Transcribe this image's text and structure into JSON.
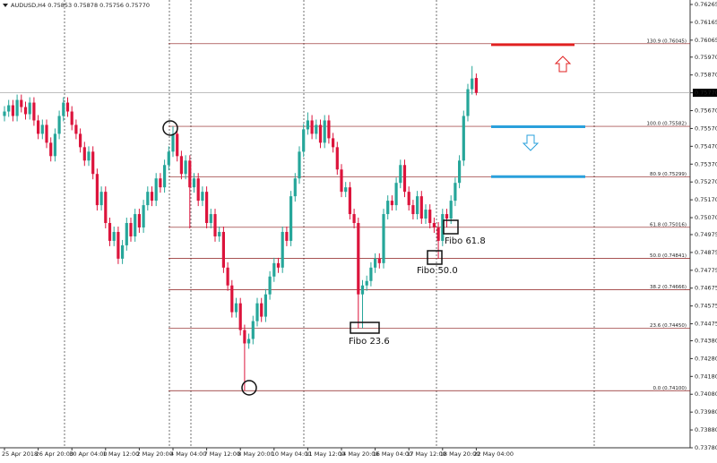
{
  "chart_data": {
    "type": "candlestick",
    "title": "AUDUSD,H4 0.75853 0.75878 0.75756 0.75770",
    "up_color": "#26a69a",
    "down_color": "#dc143c",
    "ylim": [
      0.7378,
      0.76265
    ],
    "yticks": [
      0.76265,
      0.76165,
      0.76065,
      {
        "value": 0.7597,
        "label": "0.75970"
      },
      {
        "value": 0.7587,
        "label": "0.75870"
      },
      {
        "value": 0.7577,
        "label": "0.75770"
      },
      {
        "value": 0.7567,
        "label": "0.75670"
      },
      {
        "value": 0.7557,
        "label": "0.75570"
      },
      {
        "value": 0.7547,
        "label": "0.75470"
      },
      {
        "value": 0.7537,
        "label": "0.75370"
      },
      {
        "value": 0.7527,
        "label": "0.75270"
      },
      {
        "value": 0.7517,
        "label": "0.75170"
      },
      {
        "value": 0.7507,
        "label": "0.75070"
      },
      0.74975,
      0.74875,
      0.74775,
      0.74675,
      0.74575,
      0.74475,
      {
        "value": 0.7438,
        "label": "0.74380"
      },
      {
        "value": 0.7428,
        "label": "0.74280"
      },
      {
        "value": 0.7418,
        "label": "0.74180"
      },
      {
        "value": 0.7408,
        "label": "0.74080"
      },
      {
        "value": 0.7398,
        "label": "0.73980"
      },
      {
        "value": 0.7388,
        "label": "0.73880"
      },
      {
        "value": 0.7378,
        "label": "0.73780"
      }
    ],
    "categories": [
      "25 Apr 2018",
      null,
      null,
      null,
      null,
      null,
      null,
      null,
      "26 Apr 20:00",
      null,
      null,
      null,
      null,
      null,
      null,
      null,
      "30 Apr 04:00",
      null,
      null,
      null,
      null,
      null,
      null,
      null,
      "1 May 12:00",
      null,
      null,
      null,
      null,
      null,
      null,
      null,
      "2 May 20:00",
      null,
      null,
      null,
      null,
      null,
      null,
      null,
      "4 May 04:00",
      null,
      null,
      null,
      null,
      null,
      null,
      null,
      "7 May 12:00",
      null,
      null,
      null,
      null,
      null,
      null,
      null,
      "8 May 20:00",
      null,
      null,
      null,
      null,
      null,
      null,
      null,
      "10 May 04:00",
      null,
      null,
      null,
      null,
      null,
      null,
      null,
      "11 May 12:00",
      null,
      null,
      null,
      null,
      null,
      null,
      null,
      "14 May 20:00",
      null,
      null,
      null,
      null,
      null,
      null,
      null,
      "16 May 04:00",
      null,
      null,
      null,
      null,
      null,
      null,
      null,
      "17 May 12:00",
      null,
      null,
      null,
      null,
      null,
      null,
      null,
      "18 May 20:00",
      null,
      null,
      null,
      null,
      null,
      null,
      null,
      "22 May 04:00"
    ],
    "open": [
      0.7564,
      0.75665,
      0.757,
      0.7564,
      0.7573,
      0.7569,
      0.7565,
      0.75715,
      0.75615,
      0.7554,
      0.7559,
      0.7549,
      0.75415,
      0.7554,
      0.7564,
      0.75715,
      0.75665,
      0.7559,
      0.7554,
      0.75465,
      0.7539,
      0.7544,
      0.75315,
      0.7514,
      0.75215,
      0.7504,
      0.7494,
      0.7499,
      0.7484,
      0.74915,
      0.7504,
      0.74965,
      0.7509,
      0.75015,
      0.7514,
      0.75215,
      0.75165,
      0.7529,
      0.7524,
      0.75365,
      0.7544,
      0.7554,
      0.75415,
      0.75315,
      0.7539,
      0.7524,
      0.7529,
      0.75165,
      0.75215,
      0.7504,
      0.7509,
      0.74965,
      0.7499,
      0.7479,
      0.7469,
      0.7454,
      0.7459,
      0.7444,
      0.74365,
      0.7439,
      0.7449,
      0.7459,
      0.74515,
      0.7464,
      0.7474,
      0.74815,
      0.7479,
      0.7499,
      0.7494,
      0.7519,
      0.7529,
      0.7544,
      0.75565,
      0.75615,
      0.7554,
      0.7559,
      0.7549,
      0.75615,
      0.75515,
      0.75465,
      0.7534,
      0.75215,
      0.7524,
      0.7509,
      0.7504,
      0.7464,
      0.7469,
      0.74715,
      0.7479,
      0.7484,
      0.74815,
      0.7509,
      0.75165,
      0.7514,
      0.75265,
      0.75365,
      0.75215,
      0.7514,
      0.7509,
      0.7519,
      0.75065,
      0.75115,
      0.7504,
      0.75015,
      0.7494,
      0.7509,
      0.75065,
      0.75165,
      0.75265,
      0.7539,
      0.7564,
      0.7579,
      0.75853
    ],
    "high": [
      0.75695,
      0.7573,
      0.7573,
      0.7576,
      0.7576,
      0.7572,
      0.75745,
      0.75745,
      0.75645,
      0.7562,
      0.7562,
      0.7552,
      0.7557,
      0.7567,
      0.75745,
      0.75745,
      0.75695,
      0.7562,
      0.7557,
      0.75495,
      0.7547,
      0.7547,
      0.75345,
      0.75245,
      0.75245,
      0.7507,
      0.7502,
      0.7502,
      0.74945,
      0.7507,
      0.7507,
      0.7512,
      0.7512,
      0.7517,
      0.75245,
      0.75245,
      0.7532,
      0.7532,
      0.75395,
      0.7547,
      0.75582,
      0.7557,
      0.75445,
      0.7542,
      0.7542,
      0.7532,
      0.7532,
      0.75245,
      0.75245,
      0.7512,
      0.7512,
      0.7502,
      0.7502,
      0.7482,
      0.7472,
      0.7462,
      0.7462,
      0.7447,
      0.7442,
      0.7452,
      0.7462,
      0.7462,
      0.7467,
      0.7477,
      0.74845,
      0.74845,
      0.7502,
      0.7502,
      0.7522,
      0.7532,
      0.7547,
      0.75595,
      0.7566,
      0.75645,
      0.7562,
      0.7562,
      0.75645,
      0.75645,
      0.75545,
      0.75495,
      0.7537,
      0.7527,
      0.7527,
      0.7512,
      0.7507,
      0.7472,
      0.74745,
      0.7482,
      0.7487,
      0.7487,
      0.7512,
      0.75195,
      0.75195,
      0.75295,
      0.75395,
      0.75395,
      0.75245,
      0.7517,
      0.7522,
      0.7522,
      0.75145,
      0.75145,
      0.7507,
      0.75045,
      0.7512,
      0.7512,
      0.75195,
      0.75295,
      0.7542,
      0.7567,
      0.7582,
      0.7592,
      0.75878
    ],
    "low": [
      0.7561,
      0.75635,
      0.7561,
      0.7561,
      0.7566,
      0.7562,
      0.7562,
      0.75585,
      0.7551,
      0.7551,
      0.7546,
      0.75385,
      0.75385,
      0.7551,
      0.7561,
      0.75635,
      0.7556,
      0.7551,
      0.75435,
      0.7536,
      0.7536,
      0.75285,
      0.7511,
      0.7511,
      0.7501,
      0.7491,
      0.7491,
      0.7481,
      0.7481,
      0.74885,
      0.74935,
      0.74935,
      0.74985,
      0.74985,
      0.7511,
      0.75135,
      0.75135,
      0.7521,
      0.7521,
      0.75335,
      0.7541,
      0.75385,
      0.75285,
      0.75285,
      0.7501,
      0.7521,
      0.75135,
      0.75135,
      0.7501,
      0.7501,
      0.74935,
      0.74935,
      0.7476,
      0.7466,
      0.7451,
      0.7451,
      0.7441,
      0.741,
      0.74335,
      0.7436,
      0.7446,
      0.74485,
      0.74485,
      0.7461,
      0.7471,
      0.7476,
      0.7476,
      0.7491,
      0.7491,
      0.7516,
      0.7526,
      0.7541,
      0.75535,
      0.7551,
      0.7551,
      0.7546,
      0.7546,
      0.75485,
      0.75435,
      0.7531,
      0.75185,
      0.75185,
      0.7506,
      0.7501,
      0.7445,
      0.7445,
      0.7466,
      0.74685,
      0.7476,
      0.74785,
      0.74785,
      0.7506,
      0.7511,
      0.7511,
      0.75235,
      0.75185,
      0.7511,
      0.7506,
      0.7506,
      0.75035,
      0.75035,
      0.7501,
      0.74985,
      0.74841,
      0.7491,
      0.75016,
      0.75035,
      0.75135,
      0.75235,
      0.7536,
      0.7561,
      0.7576,
      0.75756
    ],
    "close": [
      0.75665,
      0.757,
      0.7564,
      0.7573,
      0.7569,
      0.7565,
      0.75715,
      0.75615,
      0.7554,
      0.7559,
      0.7549,
      0.75415,
      0.7554,
      0.7564,
      0.75715,
      0.75665,
      0.7559,
      0.7554,
      0.75465,
      0.7539,
      0.7544,
      0.75315,
      0.7514,
      0.75215,
      0.7504,
      0.7494,
      0.7499,
      0.7484,
      0.74915,
      0.7504,
      0.74965,
      0.7509,
      0.75015,
      0.7514,
      0.75215,
      0.75165,
      0.7529,
      0.7524,
      0.75365,
      0.7544,
      0.7554,
      0.75415,
      0.75315,
      0.7539,
      0.7524,
      0.7529,
      0.75165,
      0.75215,
      0.7504,
      0.7509,
      0.74965,
      0.7499,
      0.7479,
      0.7469,
      0.7454,
      0.7459,
      0.7444,
      0.74365,
      0.7439,
      0.7449,
      0.7459,
      0.74515,
      0.7464,
      0.7474,
      0.74815,
      0.7479,
      0.7499,
      0.7494,
      0.7519,
      0.7529,
      0.7544,
      0.75565,
      0.75615,
      0.7554,
      0.7559,
      0.7549,
      0.75615,
      0.75515,
      0.75465,
      0.7534,
      0.75215,
      0.7524,
      0.7509,
      0.7504,
      0.7464,
      0.7469,
      0.74715,
      0.7479,
      0.7484,
      0.74815,
      0.7509,
      0.75165,
      0.7514,
      0.75265,
      0.75365,
      0.75215,
      0.7514,
      0.7509,
      0.7519,
      0.75065,
      0.75115,
      0.7504,
      0.75015,
      0.7494,
      0.7509,
      0.75065,
      0.75165,
      0.75265,
      0.7539,
      0.7564,
      0.7579,
      0.7585,
      0.7577
    ],
    "fibonacci": {
      "color": "#8b1a1a",
      "levels": [
        {
          "label": "130.9 (0.76045)",
          "price": 0.76045
        },
        {
          "label": "100.0 (0.75582)",
          "price": 0.75582
        },
        {
          "label": "80.9 (0.75299)",
          "price": 0.75299
        },
        {
          "label": "61.8 (0.75016)",
          "price": 0.75016
        },
        {
          "label": "50.0 (0.74841)",
          "price": 0.74841
        },
        {
          "label": "38.2 (0.74666)",
          "price": 0.74666
        },
        {
          "label": "23.6 (0.74450)",
          "price": 0.7445
        },
        {
          "label": "0.0 (0.74100)",
          "price": 0.741
        }
      ]
    },
    "trade_lines": [
      {
        "price": 0.7604,
        "color": "#e02020"
      },
      {
        "price": 0.7558,
        "color": "#2aa0dc"
      },
      {
        "price": 0.753,
        "color": "#2aa0dc"
      }
    ],
    "annotations": [
      "Fibo 61.8",
      "Fibo 50.0",
      "Fibo 23.6"
    ]
  }
}
